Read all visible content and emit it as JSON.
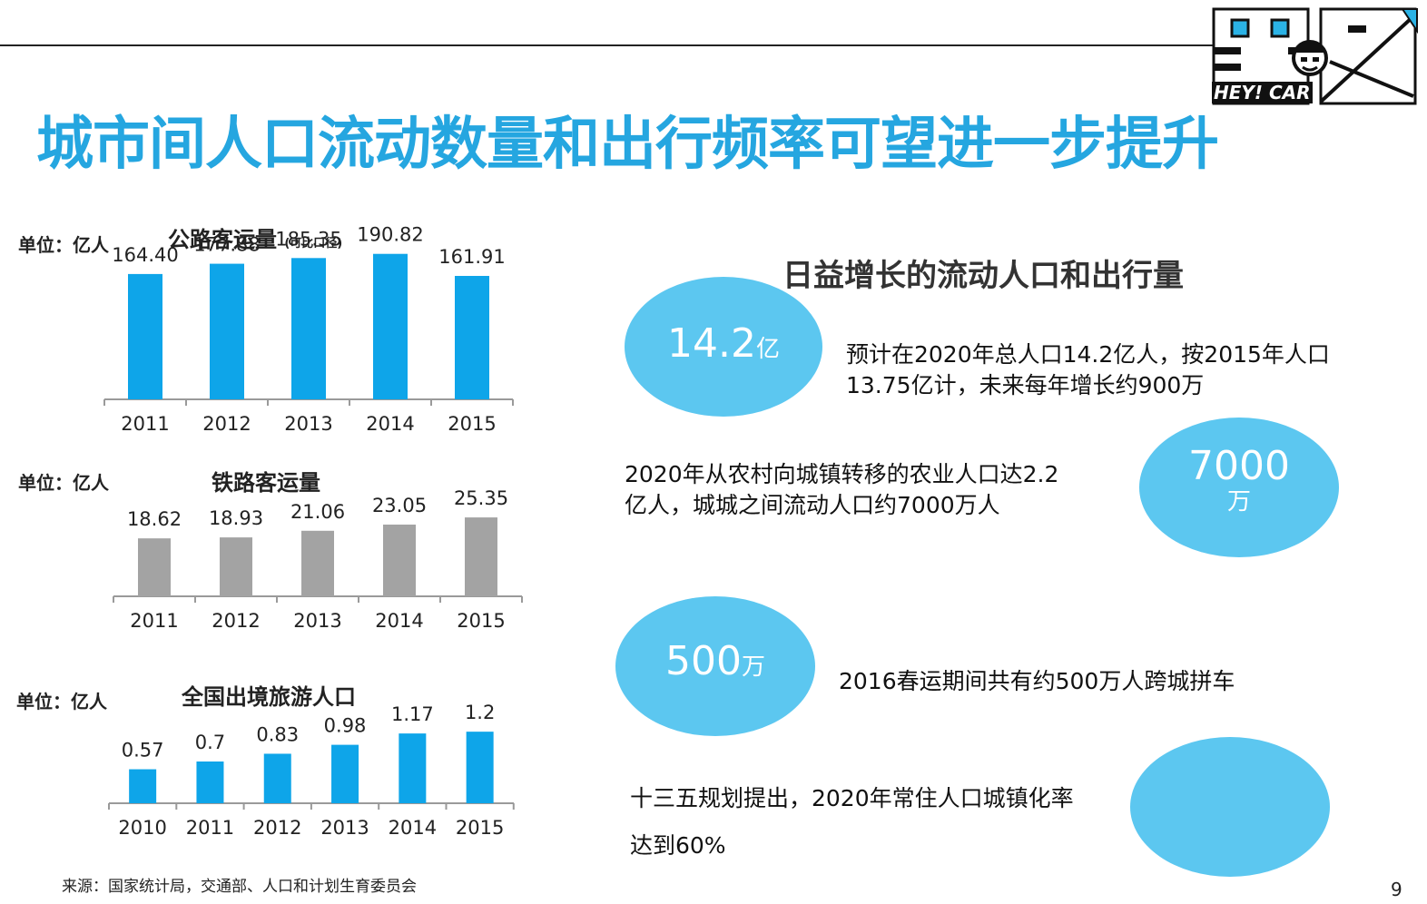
{
  "title": "城市间人口流动数量和出行频率可望进一步提升",
  "logo": {
    "text": "HEY! CAR"
  },
  "chart_data": [
    {
      "type": "bar",
      "unit_label": "单位：亿人",
      "title": "公路客运量",
      "subtitle": "(可比口径)",
      "categories": [
        "2011",
        "2012",
        "2013",
        "2014",
        "2015"
      ],
      "values": [
        164.4,
        177.88,
        185.35,
        190.82,
        161.91
      ],
      "labels": [
        "164.40",
        "177.88",
        "185.35",
        "190.82",
        "161.91"
      ],
      "color": "#0ea5e9",
      "ylim": [
        0,
        200
      ]
    },
    {
      "type": "bar",
      "unit_label": "单位：亿人",
      "title": "铁路客运量",
      "categories": [
        "2011",
        "2012",
        "2013",
        "2014",
        "2015"
      ],
      "values": [
        18.62,
        18.93,
        21.06,
        23.05,
        25.35
      ],
      "labels": [
        "18.62",
        "18.93",
        "21.06",
        "23.05",
        "25.35"
      ],
      "color": "#a3a3a3",
      "ylim": [
        0,
        28
      ]
    },
    {
      "type": "bar",
      "unit_label": "单位：亿人",
      "title": "全国出境旅游人口",
      "categories": [
        "2010",
        "2011",
        "2012",
        "2013",
        "2014",
        "2015"
      ],
      "values": [
        0.57,
        0.7,
        0.83,
        0.98,
        1.17,
        1.2
      ],
      "labels": [
        "0.57",
        "0.7",
        "0.83",
        "0.98",
        "1.17",
        "1.2"
      ],
      "color": "#0ea5e9",
      "ylim": [
        0,
        1.4
      ]
    }
  ],
  "right": {
    "title": "日益增长的流动人口和出行量",
    "items": [
      {
        "big": "14.2",
        "small": "亿",
        "desc": [
          "预计在2020年总人口14.2亿人，按2015年人口",
          "13.75亿计，未来每年增长约900万"
        ]
      },
      {
        "big": "7000",
        "small": "万",
        "desc": [
          "2020年从农村向城镇转移的农业人口达2.2",
          "亿人，城城之间流动人口约7000万人"
        ]
      },
      {
        "big": "500",
        "small": "万",
        "desc": [
          "2016春运期间共有约500万人跨城拼车"
        ]
      },
      {
        "big": "",
        "small": "",
        "desc": [
          "十三五规划提出，2020年常住人口城镇化率",
          "达到60%"
        ]
      }
    ]
  },
  "source": "来源：国家统计局，交通部、人口和计划生育委员会",
  "page_number": "9"
}
